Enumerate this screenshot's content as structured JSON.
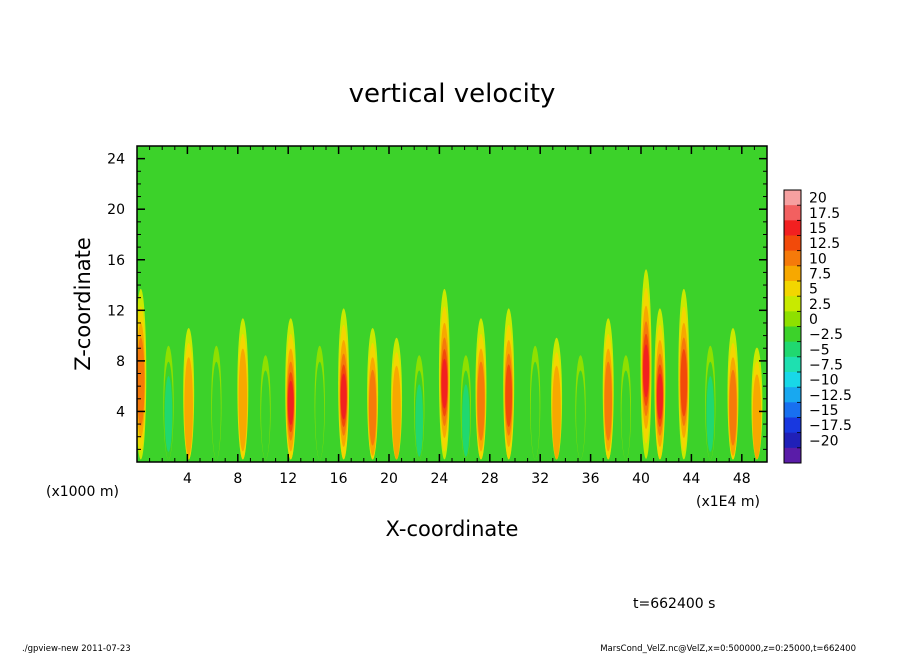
{
  "chart_data": {
    "type": "heatmap",
    "title": "vertical velocity",
    "xlabel": "X-coordinate",
    "ylabel": "Z-coordinate",
    "x_axis_unit_note": "(x1E4 m)",
    "y_axis_unit_note": "(x1000 m)",
    "x_range": [
      0,
      50
    ],
    "y_range": [
      0,
      25
    ],
    "x_ticks": [
      4,
      8,
      12,
      16,
      20,
      24,
      28,
      32,
      36,
      40,
      44,
      48
    ],
    "y_ticks": [
      4,
      8,
      12,
      16,
      20,
      24
    ],
    "colorbar": {
      "labels": [
        "20",
        "17.5",
        "15",
        "12.5",
        "10",
        "7.5",
        "5",
        "2.5",
        "0",
        "−2.5",
        "−5",
        "−7.5",
        "−10",
        "−12.5",
        "−15",
        "−17.5",
        "−20"
      ],
      "colors": [
        "#f6a0a0",
        "#f26060",
        "#f22020",
        "#f24a0a",
        "#f57a0a",
        "#f7a800",
        "#f2d600",
        "#c8ea00",
        "#8ee000",
        "#3cd22a",
        "#20d870",
        "#1ee0b0",
        "#18d8e8",
        "#18a8f0",
        "#1870f0",
        "#1838e0",
        "#2020b8",
        "#5a1ca8"
      ]
    },
    "plumes": [
      {
        "x": 0.3,
        "peak_z": 6,
        "value": 12
      },
      {
        "x": 2.5,
        "peak_z": 3.5,
        "value": -8
      },
      {
        "x": 4.1,
        "peak_z": 4,
        "value": 9
      },
      {
        "x": 6.3,
        "peak_z": 3.5,
        "value": -6
      },
      {
        "x": 8.4,
        "peak_z": 4.5,
        "value": 9
      },
      {
        "x": 10.2,
        "peak_z": 3,
        "value": -7
      },
      {
        "x": 12.2,
        "peak_z": 4.5,
        "value": 16
      },
      {
        "x": 14.5,
        "peak_z": 3.5,
        "value": -6
      },
      {
        "x": 16.4,
        "peak_z": 5,
        "value": 17
      },
      {
        "x": 18.7,
        "peak_z": 4,
        "value": 10
      },
      {
        "x": 20.6,
        "peak_z": 3.5,
        "value": 9
      },
      {
        "x": 22.4,
        "peak_z": 3,
        "value": -8
      },
      {
        "x": 24.4,
        "peak_z": 6,
        "value": 15
      },
      {
        "x": 26.1,
        "peak_z": 3,
        "value": -9
      },
      {
        "x": 27.3,
        "peak_z": 4.5,
        "value": 11
      },
      {
        "x": 29.5,
        "peak_z": 5,
        "value": 14
      },
      {
        "x": 31.6,
        "peak_z": 3.5,
        "value": -6
      },
      {
        "x": 33.3,
        "peak_z": 3.5,
        "value": 9
      },
      {
        "x": 35.2,
        "peak_z": 3,
        "value": -5
      },
      {
        "x": 37.4,
        "peak_z": 4.5,
        "value": 11
      },
      {
        "x": 38.8,
        "peak_z": 3,
        "value": -7
      },
      {
        "x": 40.4,
        "peak_z": 7,
        "value": 15
      },
      {
        "x": 41.5,
        "peak_z": 5,
        "value": 16
      },
      {
        "x": 43.4,
        "peak_z": 6,
        "value": 14
      },
      {
        "x": 45.5,
        "peak_z": 3.5,
        "value": -8
      },
      {
        "x": 47.3,
        "peak_z": 4,
        "value": 10
      },
      {
        "x": 49.2,
        "peak_z": 3,
        "value": 8
      }
    ]
  },
  "time_label": "t=662400 s",
  "footer": {
    "left": "./gpview-new   2011-07-23",
    "right": "MarsCond_VelZ.nc@VelZ,x=0:500000,z=0:25000,t=662400"
  }
}
